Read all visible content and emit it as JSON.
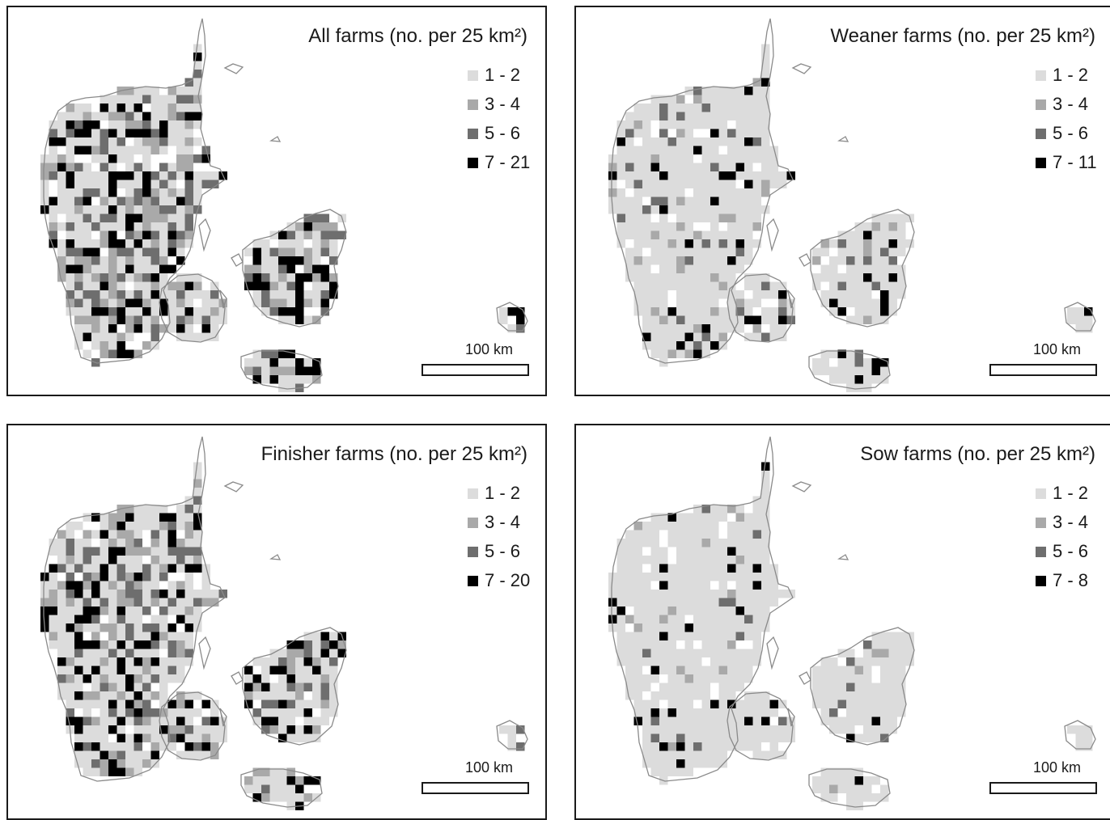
{
  "colors": {
    "class1": "#dcdcdc",
    "class2": "#a9a9a9",
    "class3": "#6e6e6e",
    "class4": "#000000",
    "outline": "#8a8a8a"
  },
  "panels": [
    {
      "id": "all",
      "title": "All farms (no. per 25 km²)",
      "legend": [
        "1 - 2",
        "3 - 4",
        "5 - 6",
        "7 - 21"
      ],
      "density": 0.55,
      "seed": 11,
      "scale": "100 km"
    },
    {
      "id": "weaner",
      "title": "Weaner farms (no. per 25 km²)",
      "legend": [
        "1 - 2",
        "3 - 4",
        "5 - 6",
        "7 - 11"
      ],
      "density": 0.18,
      "seed": 23,
      "scale": "100 km"
    },
    {
      "id": "finisher",
      "title": "Finisher farms (no. per 25 km²)",
      "legend": [
        "1 - 2",
        "3 - 4",
        "5 - 6",
        "7 - 20"
      ],
      "density": 0.5,
      "seed": 37,
      "scale": "100 km"
    },
    {
      "id": "sow",
      "title": "Sow farms (no. per 25 km²)",
      "legend": [
        "1 - 2",
        "3 - 4",
        "5 - 6",
        "7 - 8"
      ],
      "density": 0.1,
      "seed": 53,
      "scale": "100 km"
    }
  ]
}
